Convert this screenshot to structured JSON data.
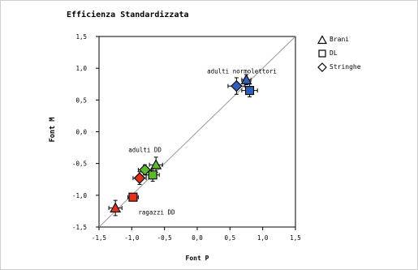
{
  "title": "Efficienza Standardizzata",
  "legend": [
    {
      "label": "Brani",
      "marker": "triangle-icon"
    },
    {
      "label": "DL",
      "marker": "square-icon"
    },
    {
      "label": "Stringhe",
      "marker": "diamond-icon"
    }
  ],
  "colors": {
    "adulti_normolettori": "#2f5fb8",
    "adulti_dd": "#5cb82c",
    "ragazzi_dd": "#e0321c",
    "diagonal": "#999999"
  },
  "chart_data": {
    "type": "scatter",
    "title": "Efficienza Standardizzata",
    "xlabel": "Font P",
    "ylabel": "Font M",
    "xlim": [
      -1.5,
      1.5
    ],
    "ylim": [
      -1.5,
      1.5
    ],
    "x_ticks": [
      "-1,5",
      "-1,0",
      "-0,5",
      "0,0",
      "0,5",
      "1,0",
      "1,5"
    ],
    "y_ticks": [
      "-1,5",
      "-1,0",
      "-0,5",
      "0,0",
      "0,5",
      "1,0",
      "1,5"
    ],
    "grid": false,
    "reference_line": "y = x",
    "groups": [
      "adulti normolettori",
      "adulti DD",
      "ragazzi DD"
    ],
    "series": [
      {
        "name": "Brani",
        "marker": "triangle",
        "points": [
          {
            "group": "adulti normolettori",
            "x": 0.75,
            "y": 0.82,
            "xerr": 0.07,
            "yerr": 0.08
          },
          {
            "group": "adulti DD",
            "x": -0.63,
            "y": -0.52,
            "xerr": 0.1,
            "yerr": 0.12
          },
          {
            "group": "ragazzi DD",
            "x": -1.25,
            "y": -1.2,
            "xerr": 0.1,
            "yerr": 0.12
          }
        ]
      },
      {
        "name": "DL",
        "marker": "square",
        "points": [
          {
            "group": "adulti normolettori",
            "x": 0.8,
            "y": 0.65,
            "xerr": 0.12,
            "yerr": 0.1
          },
          {
            "group": "adulti DD",
            "x": -0.68,
            "y": -0.68,
            "xerr": 0.1,
            "yerr": 0.1
          },
          {
            "group": "ragazzi DD",
            "x": -0.98,
            "y": -1.03,
            "xerr": 0.08,
            "yerr": 0.06
          }
        ]
      },
      {
        "name": "Stringhe",
        "marker": "diamond",
        "points": [
          {
            "group": "adulti normolettori",
            "x": 0.6,
            "y": 0.72,
            "xerr": 0.13,
            "yerr": 0.13
          },
          {
            "group": "adulti DD",
            "x": -0.8,
            "y": -0.6,
            "xerr": 0.1,
            "yerr": 0.08
          },
          {
            "group": "ragazzi DD",
            "x": -0.88,
            "y": -0.73,
            "xerr": 0.1,
            "yerr": 0.1
          }
        ]
      }
    ],
    "annotations": [
      {
        "text": "adulti normolettori",
        "x": 0.15,
        "y": 0.92
      },
      {
        "text": "adulti DD",
        "x": -1.05,
        "y": -0.32
      },
      {
        "text": "ragazzi DD",
        "x": -0.9,
        "y": -1.3
      }
    ]
  }
}
